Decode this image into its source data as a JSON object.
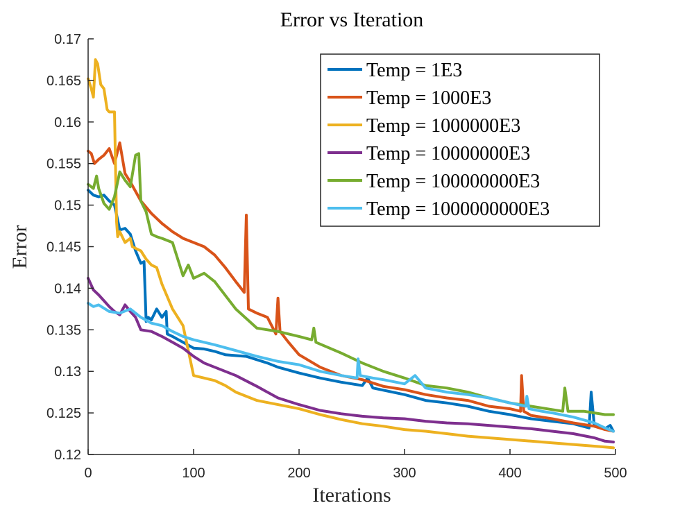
{
  "chart_data": {
    "type": "line",
    "title": "Error vs Iteration",
    "xlabel": "Iterations",
    "ylabel": "Error",
    "xlim": [
      0,
      500
    ],
    "ylim": [
      0.12,
      0.17
    ],
    "xticks": [
      0,
      100,
      200,
      300,
      400,
      500
    ],
    "xtick_labels": [
      "0",
      "100",
      "200",
      "300",
      "400",
      "500"
    ],
    "yticks": [
      0.12,
      0.125,
      0.13,
      0.135,
      0.14,
      0.145,
      0.15,
      0.155,
      0.16,
      0.165,
      0.17
    ],
    "ytick_labels": [
      "0.12",
      "0.125",
      "0.13",
      "0.135",
      "0.14",
      "0.145",
      "0.15",
      "0.155",
      "0.16",
      "0.165",
      "0.17"
    ],
    "grid": false,
    "legend_position": "top-right",
    "series": [
      {
        "name": "Temp = 1E3",
        "color": "#0072BD",
        "x": [
          0,
          5,
          10,
          15,
          20,
          25,
          28,
          30,
          35,
          40,
          45,
          50,
          53,
          55,
          57,
          60,
          65,
          70,
          74,
          75,
          80,
          90,
          100,
          110,
          120,
          130,
          150,
          170,
          180,
          200,
          220,
          240,
          260,
          265,
          270,
          300,
          320,
          340,
          360,
          380,
          400,
          420,
          440,
          460,
          475,
          477,
          480,
          490,
          495,
          498
        ],
        "y": [
          0.1518,
          0.1512,
          0.151,
          0.1512,
          0.1505,
          0.15,
          0.1482,
          0.147,
          0.1472,
          0.1465,
          0.1445,
          0.143,
          0.1432,
          0.136,
          0.1365,
          0.1362,
          0.1375,
          0.1365,
          0.1372,
          0.1345,
          0.1342,
          0.1335,
          0.1328,
          0.1327,
          0.1324,
          0.132,
          0.1318,
          0.131,
          0.1305,
          0.1298,
          0.1292,
          0.1287,
          0.1283,
          0.1292,
          0.128,
          0.1272,
          0.1265,
          0.1262,
          0.1258,
          0.1252,
          0.1248,
          0.1243,
          0.124,
          0.1237,
          0.1232,
          0.1275,
          0.1234,
          0.1231,
          0.1235,
          0.1228
        ]
      },
      {
        "name": "Temp = 1000E3",
        "color": "#D95319",
        "x": [
          0,
          3,
          6,
          10,
          15,
          20,
          25,
          30,
          35,
          40,
          50,
          60,
          70,
          80,
          90,
          100,
          110,
          120,
          130,
          140,
          148,
          150,
          152,
          160,
          170,
          178,
          180,
          182,
          190,
          200,
          220,
          240,
          260,
          280,
          300,
          320,
          340,
          360,
          380,
          400,
          410,
          411,
          413,
          420,
          440,
          460,
          480,
          490,
          498
        ],
        "y": [
          0.1565,
          0.1562,
          0.155,
          0.1555,
          0.156,
          0.1568,
          0.155,
          0.1575,
          0.1538,
          0.1528,
          0.1505,
          0.149,
          0.1478,
          0.1468,
          0.146,
          0.1455,
          0.145,
          0.144,
          0.1425,
          0.1408,
          0.1395,
          0.1488,
          0.1375,
          0.137,
          0.1365,
          0.1345,
          0.1388,
          0.1348,
          0.1335,
          0.132,
          0.1305,
          0.1295,
          0.129,
          0.1282,
          0.1278,
          0.1272,
          0.1268,
          0.1265,
          0.1258,
          0.1255,
          0.1252,
          0.1295,
          0.1252,
          0.1247,
          0.1243,
          0.1238,
          0.1234,
          0.123,
          0.1228
        ]
      },
      {
        "name": "Temp = 1000000E3",
        "color": "#EDB120",
        "x": [
          0,
          3,
          5,
          7,
          9,
          12,
          15,
          18,
          20,
          25,
          27,
          28,
          30,
          35,
          40,
          42,
          45,
          50,
          55,
          60,
          65,
          70,
          75,
          80,
          90,
          100,
          110,
          120,
          130,
          140,
          160,
          180,
          200,
          220,
          240,
          260,
          280,
          300,
          320,
          340,
          360,
          380,
          400,
          420,
          440,
          460,
          480,
          490,
          498
        ],
        "y": [
          0.1652,
          0.164,
          0.163,
          0.1675,
          0.167,
          0.1645,
          0.164,
          0.1615,
          0.1612,
          0.1612,
          0.148,
          0.1462,
          0.1468,
          0.1455,
          0.146,
          0.145,
          0.1448,
          0.1445,
          0.1435,
          0.1428,
          0.1425,
          0.1405,
          0.139,
          0.1375,
          0.1355,
          0.1295,
          0.1292,
          0.1289,
          0.1283,
          0.1275,
          0.1265,
          0.126,
          0.1255,
          0.1248,
          0.1242,
          0.1237,
          0.1234,
          0.123,
          0.1228,
          0.1225,
          0.1222,
          0.122,
          0.1218,
          0.1216,
          0.1214,
          0.1212,
          0.121,
          0.1209,
          0.1208
        ]
      },
      {
        "name": "Temp = 10000000E3",
        "color": "#7E2F8E",
        "x": [
          0,
          5,
          10,
          15,
          20,
          25,
          30,
          35,
          40,
          45,
          50,
          60,
          70,
          80,
          90,
          100,
          110,
          120,
          140,
          160,
          180,
          200,
          220,
          240,
          260,
          280,
          300,
          320,
          340,
          360,
          380,
          400,
          420,
          440,
          460,
          480,
          490,
          498
        ],
        "y": [
          0.1412,
          0.1398,
          0.1392,
          0.1385,
          0.1378,
          0.1372,
          0.1368,
          0.138,
          0.1372,
          0.1365,
          0.135,
          0.1348,
          0.1342,
          0.1335,
          0.1328,
          0.1318,
          0.131,
          0.1305,
          0.1295,
          0.1282,
          0.1268,
          0.126,
          0.1253,
          0.1249,
          0.1246,
          0.1244,
          0.1243,
          0.124,
          0.1238,
          0.1237,
          0.1235,
          0.1233,
          0.1231,
          0.1228,
          0.1225,
          0.122,
          0.1216,
          0.1215
        ]
      },
      {
        "name": "Temp = 100000000E3",
        "color": "#77AC30",
        "x": [
          0,
          5,
          8,
          10,
          15,
          20,
          25,
          30,
          35,
          40,
          45,
          48,
          50,
          55,
          60,
          65,
          70,
          80,
          90,
          95,
          100,
          110,
          120,
          140,
          160,
          180,
          200,
          212,
          214,
          216,
          240,
          260,
          280,
          300,
          320,
          340,
          360,
          380,
          400,
          420,
          440,
          450,
          452,
          455,
          470,
          490,
          498
        ],
        "y": [
          0.1525,
          0.152,
          0.1535,
          0.152,
          0.1502,
          0.1495,
          0.151,
          0.154,
          0.153,
          0.1522,
          0.156,
          0.1562,
          0.1505,
          0.1492,
          0.1465,
          0.1462,
          0.146,
          0.1455,
          0.1415,
          0.1428,
          0.1412,
          0.1418,
          0.1408,
          0.1375,
          0.1352,
          0.1348,
          0.1342,
          0.1338,
          0.1352,
          0.1335,
          0.1322,
          0.131,
          0.13,
          0.1292,
          0.1283,
          0.128,
          0.1275,
          0.1268,
          0.1262,
          0.1258,
          0.1254,
          0.1252,
          0.128,
          0.1252,
          0.1252,
          0.1248,
          0.1248
        ]
      },
      {
        "name": "Temp = 1000000000E3",
        "color": "#4DBEEE",
        "x": [
          0,
          5,
          10,
          20,
          30,
          40,
          50,
          60,
          70,
          80,
          90,
          100,
          120,
          140,
          160,
          180,
          200,
          220,
          240,
          255,
          256,
          258,
          270,
          280,
          300,
          310,
          320,
          340,
          360,
          380,
          400,
          415,
          416,
          418,
          430,
          440,
          460,
          480,
          490,
          498
        ],
        "y": [
          0.1382,
          0.1378,
          0.138,
          0.1372,
          0.137,
          0.1375,
          0.1365,
          0.1358,
          0.1355,
          0.1348,
          0.1342,
          0.1338,
          0.1332,
          0.1325,
          0.1318,
          0.1312,
          0.1308,
          0.13,
          0.1295,
          0.1292,
          0.1315,
          0.1295,
          0.1292,
          0.129,
          0.1285,
          0.1295,
          0.128,
          0.1275,
          0.1272,
          0.1268,
          0.1262,
          0.1258,
          0.127,
          0.1255,
          0.1252,
          0.125,
          0.1245,
          0.1238,
          0.1232,
          0.1228
        ]
      }
    ]
  }
}
